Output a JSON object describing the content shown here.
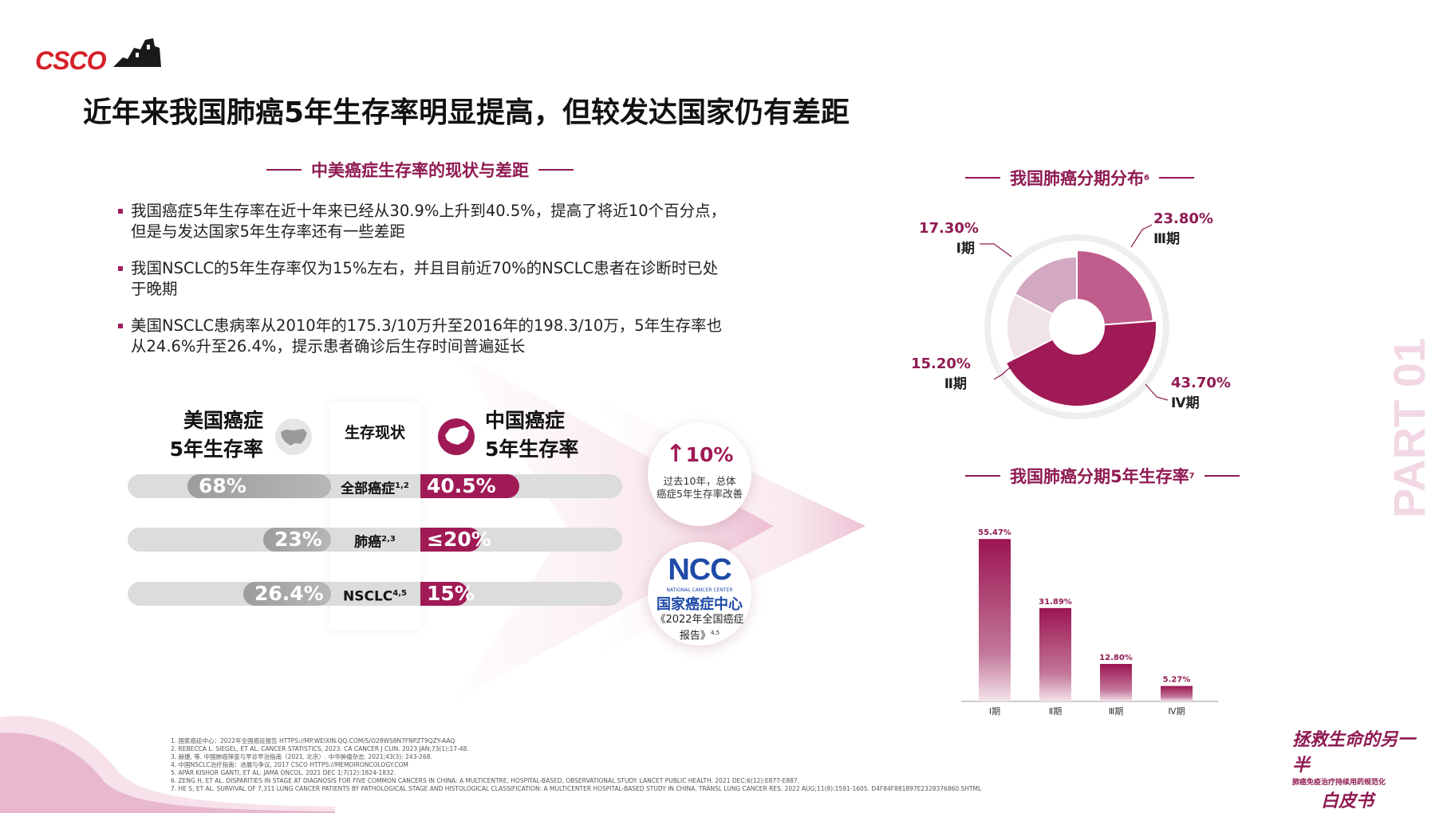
{
  "logo": {
    "text": "CSCO"
  },
  "title": "近年来我国肺癌5年生存率明显提高，但较发达国家仍有差距",
  "left_section": {
    "heading": "中美癌症生存率的现状与差距",
    "bullets": [
      "我国癌症5年生存率在近十年来已经从30.9%上升到40.5%，提高了将近10个百分点，但是与发达国家5年生存率还有一些差距",
      "我国NSCLC的5年生存率仅为15%左右，并且目前近70%的NSCLC患者在诊断时已处于晚期",
      "美国NSCLC患病率从2010年的175.3/10万升至2016年的198.3/10万，5年生存率也从24.6%升至26.4%，提示患者确诊后生存时间普遍延长"
    ]
  },
  "comparison": {
    "us_label_line1": "美国癌症",
    "us_label_line2": "5年生存率",
    "cn_label_line1": "中国癌症",
    "cn_label_line2": "5年生存率",
    "middle_header": "生存现状",
    "rows": [
      {
        "label": "全部癌症",
        "sup": "1,2",
        "us": "68%",
        "cn": "40.5%",
        "us_value": 68,
        "cn_value": 40.5
      },
      {
        "label": "肺癌",
        "sup": "2,3",
        "us": "23%",
        "cn": "≤20%",
        "us_value": 23,
        "cn_value": 20
      },
      {
        "label": "NSCLC",
        "sup": "4,5",
        "us": "26.4%",
        "cn": "15%",
        "us_value": 26.4,
        "cn_value": 15
      }
    ]
  },
  "callout1": {
    "pct": "10%",
    "line1": "过去10年，总体",
    "line2": "癌症5年生存率改善"
  },
  "callout2": {
    "logo": "NCC",
    "logo_sub": "NATIONAL CANCER CENTER",
    "name": "国家癌症中心",
    "report_line1": "《2022年全国癌症",
    "report_line2": "报告》",
    "sup": "4,5"
  },
  "pie_section": {
    "heading": "我国肺癌分期分布",
    "sup": "6",
    "slices": [
      {
        "stage": "Ⅰ期",
        "pct_label": "17.30%",
        "value": 17.3,
        "color": "#d3a8c1"
      },
      {
        "stage": "Ⅲ期",
        "pct_label": "23.80%",
        "value": 23.8,
        "color": "#c05d8c"
      },
      {
        "stage": "Ⅳ期",
        "pct_label": "43.70%",
        "value": 43.7,
        "color": "#a01a56"
      },
      {
        "stage": "Ⅱ期",
        "pct_label": "15.20%",
        "value": 15.2,
        "color": "#f1e3ea"
      }
    ]
  },
  "chart_data": {
    "type": "bar",
    "title": "我国肺癌分期5年生存率",
    "title_sup": "7",
    "categories": [
      "Ⅰ期",
      "Ⅱ期",
      "Ⅲ期",
      "Ⅳ期"
    ],
    "values": [
      55.47,
      31.89,
      12.8,
      5.27
    ],
    "value_labels": [
      "55.47%",
      "31.89%",
      "12.80%",
      "5.27%"
    ],
    "ylim": [
      0,
      60
    ],
    "grid": false,
    "legend": "none"
  },
  "part_label": "PART 01",
  "references": [
    "1. 国家癌症中心：2022年全国癌症报告 HTTPS://MP.WEIXIN.QQ.COM/S/O28WS8N7FNPZT9QZY-AAQ",
    "2. REBECCA L. SIEGEL, ET AL. CANCER STATISTICS, 2023. CA CANCER J CLIN. 2023 JAN;73(1):17-48.",
    "3. 赫捷, 等. 中国肺癌筛查与早诊早治指南（2021, 北京）. 中华肿瘤杂志. 2021;43(3): 243-268.",
    "4. 中国NSCLC治疗指南：进展与争议, 2017 CSCO HTTPS://MEMOIRONCOLOGY.COM",
    "5. APAR KISHOR GANTI, ET AL. JAMA ONCOL. 2021 DEC 1;7(12):1824-1832.",
    "6. ZENG H, ET AL. DISPARITIES IN STAGE AT DIAGNOSIS FOR FIVE COMMON CANCERS IN CHINA: A MULTICENTRE, HOSPITAL-BASED, OBSERVATIONAL STUDY. LANCET PUBLIC HEALTH. 2021 DEC;6(12):E877-E887.",
    "7. HE S, ET AL. SURVIVAL OF 7,311 LUNG CANCER PATIENTS BY PATHOLOGICAL STAGE AND HISTOLOGICAL CLASSIFICATION: A MULTICENTER HOSPITAL-BASED STUDY IN CHINA. TRANSL LUNG CANCER RES. 2022 AUG;11(8):1591-1605. D4F84F881897E2328376860.SHTML"
  ],
  "bottom_brand": {
    "line1": "拯救生命的另一半",
    "line2": "肺癌免疫治疗持续用药规范化",
    "line3": "白皮书"
  },
  "colors": {
    "brand": "#a01a56",
    "accent": "#8f1a52",
    "gray": "#dcdcdc",
    "logo_red": "#d6202a",
    "ncc_blue": "#1e4aa8"
  }
}
